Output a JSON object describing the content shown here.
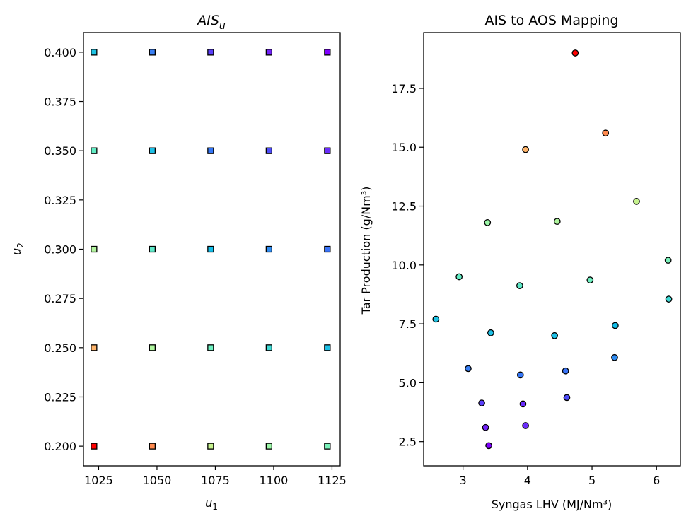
{
  "chart_data": [
    {
      "type": "scatter",
      "title": "AIS",
      "title_subscript": "u",
      "xlabel": "u",
      "xlabel_subscript": "1",
      "ylabel": "u",
      "ylabel_subscript": "2",
      "xlim": [
        1018.5,
        1128.5
      ],
      "ylim": [
        0.19,
        0.41
      ],
      "xticks": [
        1025,
        1050,
        1075,
        1100,
        1125
      ],
      "yticks": [
        0.2,
        0.225,
        0.25,
        0.275,
        0.3,
        0.325,
        0.35,
        0.375,
        0.4
      ],
      "ytick_labels": [
        "0.200",
        "0.225",
        "0.250",
        "0.275",
        "0.300",
        "0.325",
        "0.350",
        "0.375",
        "0.400"
      ],
      "marker": "square",
      "grid": false,
      "points": [
        {
          "x": 1023,
          "y": 0.2,
          "color": "#ff0000"
        },
        {
          "x": 1048,
          "y": 0.2,
          "color": "#ff8a4e"
        },
        {
          "x": 1073,
          "y": 0.2,
          "color": "#c6f28e"
        },
        {
          "x": 1098,
          "y": 0.2,
          "color": "#9cf7a8"
        },
        {
          "x": 1123,
          "y": 0.2,
          "color": "#7bf2bb"
        },
        {
          "x": 1023,
          "y": 0.25,
          "color": "#ffb56b"
        },
        {
          "x": 1048,
          "y": 0.25,
          "color": "#aff59e"
        },
        {
          "x": 1073,
          "y": 0.25,
          "color": "#6ef0c0"
        },
        {
          "x": 1098,
          "y": 0.25,
          "color": "#3fd9d4"
        },
        {
          "x": 1123,
          "y": 0.25,
          "color": "#1ec0e6"
        },
        {
          "x": 1023,
          "y": 0.3,
          "color": "#b3f49f"
        },
        {
          "x": 1048,
          "y": 0.3,
          "color": "#5ee8c8"
        },
        {
          "x": 1073,
          "y": 0.3,
          "color": "#12bde8"
        },
        {
          "x": 1098,
          "y": 0.3,
          "color": "#2f8cf2"
        },
        {
          "x": 1123,
          "y": 0.3,
          "color": "#3a74f8"
        },
        {
          "x": 1023,
          "y": 0.35,
          "color": "#62ecc4"
        },
        {
          "x": 1048,
          "y": 0.35,
          "color": "#1dc0e6"
        },
        {
          "x": 1073,
          "y": 0.35,
          "color": "#3476f6"
        },
        {
          "x": 1098,
          "y": 0.35,
          "color": "#4e4cfa"
        },
        {
          "x": 1123,
          "y": 0.35,
          "color": "#6a2cfb"
        },
        {
          "x": 1023,
          "y": 0.4,
          "color": "#1ec3e4"
        },
        {
          "x": 1048,
          "y": 0.4,
          "color": "#3a80f4"
        },
        {
          "x": 1073,
          "y": 0.4,
          "color": "#5a3efa"
        },
        {
          "x": 1098,
          "y": 0.4,
          "color": "#7222f9"
        },
        {
          "x": 1123,
          "y": 0.4,
          "color": "#8000ff"
        }
      ]
    },
    {
      "type": "scatter",
      "title": "AIS to AOS Mapping",
      "xlabel": "Syngas LHV (MJ/Nm³)",
      "ylabel": "Tar Production (g/Nm³)",
      "xlim": [
        2.39,
        6.37
      ],
      "ylim": [
        1.47,
        19.87
      ],
      "xticks": [
        3,
        4,
        5,
        6
      ],
      "yticks": [
        2.5,
        5.0,
        7.5,
        10.0,
        12.5,
        15.0,
        17.5
      ],
      "ytick_labels": [
        "2.5",
        "5.0",
        "7.5",
        "10.0",
        "12.5",
        "15.0",
        "17.5"
      ],
      "marker": "circle",
      "grid": false,
      "points": [
        {
          "x": 4.74,
          "y": 19.0,
          "color": "#ff0000"
        },
        {
          "x": 5.21,
          "y": 15.6,
          "color": "#ff8a4e"
        },
        {
          "x": 3.97,
          "y": 14.9,
          "color": "#ffb56b"
        },
        {
          "x": 5.69,
          "y": 12.7,
          "color": "#c6f28e"
        },
        {
          "x": 3.38,
          "y": 11.8,
          "color": "#9cf7a8"
        },
        {
          "x": 4.46,
          "y": 11.85,
          "color": "#aff59e"
        },
        {
          "x": 6.18,
          "y": 10.2,
          "color": "#7bf2bb"
        },
        {
          "x": 2.94,
          "y": 9.5,
          "color": "#62ecc4"
        },
        {
          "x": 4.97,
          "y": 9.36,
          "color": "#6ef0c0"
        },
        {
          "x": 3.88,
          "y": 9.12,
          "color": "#5ee8c8"
        },
        {
          "x": 6.19,
          "y": 8.55,
          "color": "#3fd9d4"
        },
        {
          "x": 2.58,
          "y": 7.7,
          "color": "#1ec3e4"
        },
        {
          "x": 5.36,
          "y": 7.43,
          "color": "#12bde8"
        },
        {
          "x": 3.43,
          "y": 7.12,
          "color": "#1dc0e6"
        },
        {
          "x": 4.42,
          "y": 7.0,
          "color": "#1ec0e6"
        },
        {
          "x": 5.35,
          "y": 6.07,
          "color": "#2f8cf2"
        },
        {
          "x": 3.08,
          "y": 5.6,
          "color": "#3a80f4"
        },
        {
          "x": 4.59,
          "y": 5.5,
          "color": "#3a74f8"
        },
        {
          "x": 3.89,
          "y": 5.33,
          "color": "#3476f6"
        },
        {
          "x": 4.61,
          "y": 4.37,
          "color": "#4e4cfa"
        },
        {
          "x": 3.29,
          "y": 4.14,
          "color": "#5a3efa"
        },
        {
          "x": 3.93,
          "y": 4.1,
          "color": "#6a2cfb"
        },
        {
          "x": 3.35,
          "y": 3.1,
          "color": "#7222f9"
        },
        {
          "x": 3.97,
          "y": 3.18,
          "color": "#6a2cfb"
        },
        {
          "x": 3.4,
          "y": 2.33,
          "color": "#8000ff"
        }
      ]
    }
  ]
}
